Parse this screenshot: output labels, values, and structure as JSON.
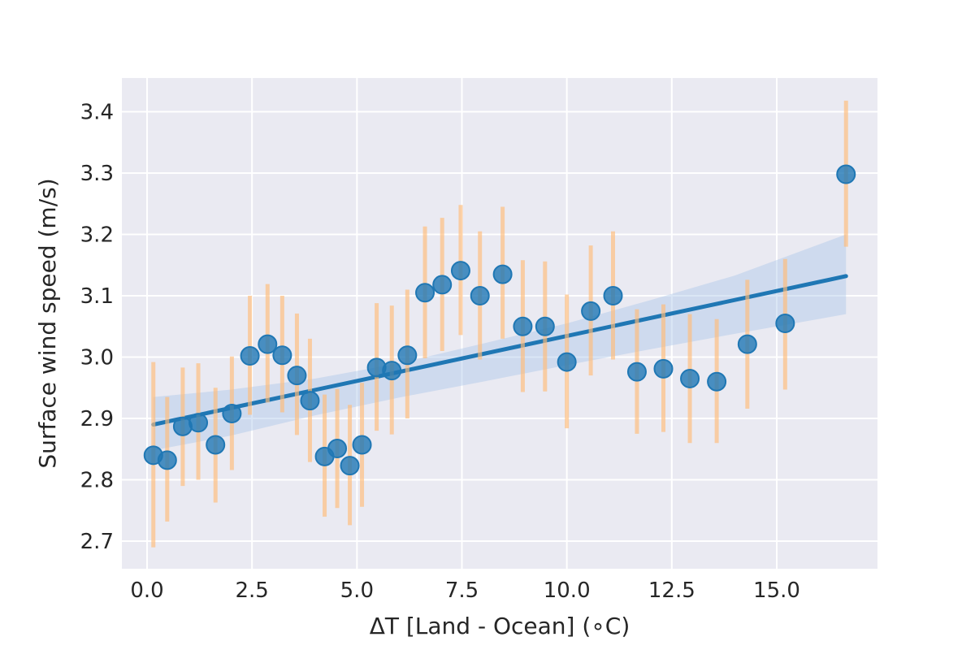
{
  "chart_data": {
    "type": "scatter",
    "title": "",
    "xlabel": "ΔT [Land - Ocean] (∘C)",
    "ylabel": "Surface wind speed (m/s)",
    "xlim": [
      -0.6,
      17.4
    ],
    "ylim": [
      2.655,
      3.455
    ],
    "x_ticks": [
      0.0,
      2.5,
      5.0,
      7.5,
      10.0,
      12.5,
      15.0
    ],
    "x_tick_labels": [
      "0.0",
      "2.5",
      "5.0",
      "7.5",
      "10.0",
      "12.5",
      "15.0"
    ],
    "y_ticks": [
      2.7,
      2.8,
      2.9,
      3.0,
      3.1,
      3.2,
      3.3,
      3.4
    ],
    "y_tick_labels": [
      "2.7",
      "2.8",
      "2.9",
      "3.0",
      "3.1",
      "3.2",
      "3.3",
      "3.4"
    ],
    "grid": true,
    "colors": {
      "background": "#eaeaf2",
      "grid": "#ffffff",
      "points": "#1f77b4",
      "error_bars": "#ffbb78",
      "fit_line": "#1f77b4",
      "confidence_band": "#aec7e8"
    },
    "series": [
      {
        "type": "scatter_with_error",
        "points": [
          {
            "x": 0.15,
            "y": 2.84,
            "lo": 2.69,
            "hi": 2.992
          },
          {
            "x": 0.48,
            "y": 2.832,
            "lo": 2.732,
            "hi": 2.935
          },
          {
            "x": 0.85,
            "y": 2.887,
            "lo": 2.79,
            "hi": 2.983
          },
          {
            "x": 1.22,
            "y": 2.893,
            "lo": 2.8,
            "hi": 2.99
          },
          {
            "x": 1.63,
            "y": 2.857,
            "lo": 2.763,
            "hi": 2.95
          },
          {
            "x": 2.02,
            "y": 2.908,
            "lo": 2.816,
            "hi": 3.001
          },
          {
            "x": 2.45,
            "y": 3.002,
            "lo": 2.906,
            "hi": 3.1
          },
          {
            "x": 2.87,
            "y": 3.021,
            "lo": 2.926,
            "hi": 3.119
          },
          {
            "x": 3.22,
            "y": 3.003,
            "lo": 2.91,
            "hi": 3.1
          },
          {
            "x": 3.57,
            "y": 2.97,
            "lo": 2.873,
            "hi": 3.071
          },
          {
            "x": 3.88,
            "y": 2.929,
            "lo": 2.829,
            "hi": 3.03
          },
          {
            "x": 4.23,
            "y": 2.838,
            "lo": 2.74,
            "hi": 2.939
          },
          {
            "x": 4.53,
            "y": 2.851,
            "lo": 2.754,
            "hi": 2.948
          },
          {
            "x": 4.83,
            "y": 2.823,
            "lo": 2.726,
            "hi": 2.922
          },
          {
            "x": 5.12,
            "y": 2.857,
            "lo": 2.756,
            "hi": 2.958
          },
          {
            "x": 5.47,
            "y": 2.983,
            "lo": 2.88,
            "hi": 3.088
          },
          {
            "x": 5.83,
            "y": 2.978,
            "lo": 2.874,
            "hi": 3.084
          },
          {
            "x": 6.2,
            "y": 3.003,
            "lo": 2.9,
            "hi": 3.11
          },
          {
            "x": 6.62,
            "y": 3.105,
            "lo": 2.998,
            "hi": 3.213
          },
          {
            "x": 7.03,
            "y": 3.118,
            "lo": 3.01,
            "hi": 3.227
          },
          {
            "x": 7.47,
            "y": 3.141,
            "lo": 3.036,
            "hi": 3.248
          },
          {
            "x": 7.93,
            "y": 3.1,
            "lo": 2.996,
            "hi": 3.205
          },
          {
            "x": 8.47,
            "y": 3.135,
            "lo": 3.03,
            "hi": 3.245
          },
          {
            "x": 8.95,
            "y": 3.05,
            "lo": 2.943,
            "hi": 3.158
          },
          {
            "x": 9.48,
            "y": 3.05,
            "lo": 2.944,
            "hi": 3.156
          },
          {
            "x": 10.0,
            "y": 2.992,
            "lo": 2.884,
            "hi": 3.102
          },
          {
            "x": 10.57,
            "y": 3.075,
            "lo": 2.97,
            "hi": 3.182
          },
          {
            "x": 11.1,
            "y": 3.1,
            "lo": 2.996,
            "hi": 3.205
          },
          {
            "x": 11.67,
            "y": 2.976,
            "lo": 2.875,
            "hi": 3.078
          },
          {
            "x": 12.3,
            "y": 2.981,
            "lo": 2.878,
            "hi": 3.086
          },
          {
            "x": 12.93,
            "y": 2.965,
            "lo": 2.86,
            "hi": 3.07
          },
          {
            "x": 13.57,
            "y": 2.96,
            "lo": 2.86,
            "hi": 3.062
          },
          {
            "x": 14.3,
            "y": 3.021,
            "lo": 2.916,
            "hi": 3.126
          },
          {
            "x": 15.2,
            "y": 3.055,
            "lo": 2.947,
            "hi": 3.16
          },
          {
            "x": 16.65,
            "y": 3.298,
            "lo": 3.18,
            "hi": 3.418
          }
        ]
      },
      {
        "type": "regression_line",
        "x": [
          0.15,
          16.65
        ],
        "y": [
          2.89,
          3.132
        ]
      },
      {
        "type": "confidence_band",
        "x": [
          0.15,
          2.0,
          4.0,
          6.0,
          8.0,
          10.0,
          12.0,
          14.0,
          16.65
        ],
        "upper": [
          2.935,
          2.947,
          2.965,
          2.99,
          3.022,
          3.055,
          3.093,
          3.133,
          3.2
        ],
        "lower": [
          2.848,
          2.872,
          2.905,
          2.934,
          2.96,
          2.987,
          3.013,
          3.038,
          3.07
        ]
      }
    ]
  }
}
